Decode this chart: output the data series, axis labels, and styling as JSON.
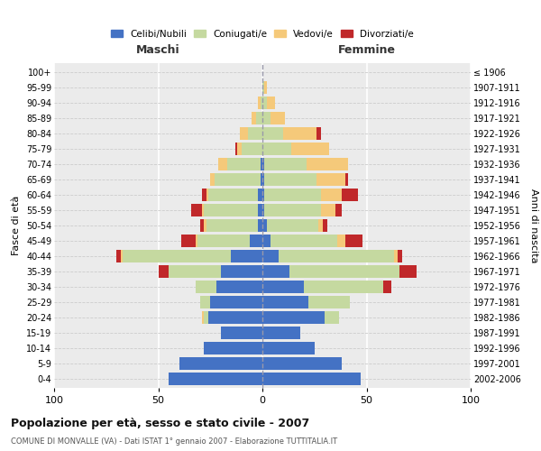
{
  "age_groups": [
    "0-4",
    "5-9",
    "10-14",
    "15-19",
    "20-24",
    "25-29",
    "30-34",
    "35-39",
    "40-44",
    "45-49",
    "50-54",
    "55-59",
    "60-64",
    "65-69",
    "70-74",
    "75-79",
    "80-84",
    "85-89",
    "90-94",
    "95-99",
    "100+"
  ],
  "birth_years": [
    "2002-2006",
    "1997-2001",
    "1992-1996",
    "1987-1991",
    "1982-1986",
    "1977-1981",
    "1972-1976",
    "1967-1971",
    "1962-1966",
    "1957-1961",
    "1952-1956",
    "1947-1951",
    "1942-1946",
    "1937-1941",
    "1932-1936",
    "1927-1931",
    "1922-1926",
    "1917-1921",
    "1912-1916",
    "1907-1911",
    "≤ 1906"
  ],
  "maschi_celibi": [
    45,
    40,
    28,
    20,
    26,
    25,
    22,
    20,
    15,
    6,
    2,
    2,
    2,
    1,
    1,
    0,
    0,
    0,
    0,
    0,
    0
  ],
  "maschi_coniugati": [
    0,
    0,
    0,
    0,
    2,
    5,
    10,
    25,
    52,
    25,
    25,
    26,
    24,
    22,
    16,
    10,
    7,
    3,
    1,
    0,
    0
  ],
  "maschi_vedovi": [
    0,
    0,
    0,
    0,
    1,
    0,
    0,
    0,
    1,
    1,
    1,
    1,
    1,
    2,
    4,
    2,
    4,
    2,
    1,
    0,
    0
  ],
  "maschi_divorziati": [
    0,
    0,
    0,
    0,
    0,
    0,
    0,
    5,
    2,
    7,
    2,
    5,
    2,
    0,
    0,
    1,
    0,
    0,
    0,
    0,
    0
  ],
  "femmine_nubili": [
    47,
    38,
    25,
    18,
    30,
    22,
    20,
    13,
    8,
    4,
    2,
    1,
    1,
    1,
    1,
    0,
    0,
    0,
    0,
    0,
    0
  ],
  "femmine_coniugate": [
    0,
    0,
    0,
    0,
    7,
    20,
    38,
    53,
    55,
    32,
    25,
    27,
    27,
    25,
    20,
    14,
    10,
    4,
    2,
    1,
    0
  ],
  "femmine_vedove": [
    0,
    0,
    0,
    0,
    0,
    0,
    0,
    0,
    2,
    4,
    2,
    7,
    10,
    14,
    20,
    18,
    16,
    7,
    4,
    1,
    0
  ],
  "femmine_divorziate": [
    0,
    0,
    0,
    0,
    0,
    0,
    4,
    8,
    2,
    8,
    2,
    3,
    8,
    1,
    0,
    0,
    2,
    0,
    0,
    0,
    0
  ],
  "colors": {
    "celibi_nubili": "#4472C4",
    "coniugati": "#c5d9a0",
    "vedovi": "#f5c97a",
    "divorziati": "#c0282a"
  },
  "title": "Popolazione per età, sesso e stato civile - 2007",
  "subtitle": "COMUNE DI MONVALLE (VA) - Dati ISTAT 1° gennaio 2007 - Elaborazione TUTTITALIA.IT",
  "label_maschi": "Maschi",
  "label_femmine": "Femmine",
  "label_fasce": "Fasce di età",
  "label_anni": "Anni di nascita",
  "xlim": 100,
  "legend_labels": [
    "Celibi/Nubili",
    "Coniugati/e",
    "Vedovi/e",
    "Divorziati/e"
  ],
  "bg_color": "#ffffff",
  "plot_bg_color": "#ebebeb"
}
